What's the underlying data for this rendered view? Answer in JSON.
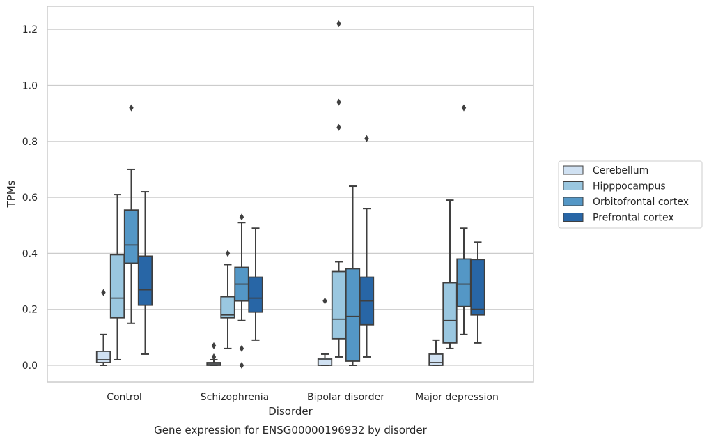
{
  "chart_data": {
    "type": "box",
    "xlabel": "Disorder",
    "ylabel": "TPMs",
    "caption": "Gene expression for ENSG00000196932 by disorder",
    "ylim": [
      -0.06,
      1.28
    ],
    "yticks": [
      "0.0",
      "0.2",
      "0.4",
      "0.6",
      "0.8",
      "1.0",
      "1.2"
    ],
    "grid": "horizontal",
    "legend_position": "right",
    "categories": [
      "Control",
      "Schizophrenia",
      "Bipolar disorder",
      "Major depression"
    ],
    "series": [
      {
        "name": "Cerebellum",
        "color": "#d0e1f2",
        "boxes": [
          {
            "whisker_low": 0.0,
            "q1": 0.01,
            "median": 0.02,
            "q3": 0.05,
            "whisker_high": 0.11,
            "outliers": [
              0.26
            ]
          },
          {
            "whisker_low": 0.0,
            "q1": 0.0,
            "median": 0.005,
            "q3": 0.01,
            "whisker_high": 0.02,
            "outliers": [
              0.03,
              0.07
            ]
          },
          {
            "whisker_low": 0.0,
            "q1": 0.0,
            "median": 0.02,
            "q3": 0.025,
            "whisker_high": 0.04,
            "outliers": [
              0.23
            ]
          },
          {
            "whisker_low": 0.0,
            "q1": 0.0,
            "median": 0.01,
            "q3": 0.04,
            "whisker_high": 0.09,
            "outliers": []
          }
        ]
      },
      {
        "name": "Hipppocampus",
        "color": "#9ac7e0",
        "boxes": [
          {
            "whisker_low": 0.02,
            "q1": 0.17,
            "median": 0.24,
            "q3": 0.395,
            "whisker_high": 0.61,
            "outliers": []
          },
          {
            "whisker_low": 0.06,
            "q1": 0.17,
            "median": 0.18,
            "q3": 0.245,
            "whisker_high": 0.36,
            "outliers": [
              0.4
            ]
          },
          {
            "whisker_low": 0.03,
            "q1": 0.095,
            "median": 0.165,
            "q3": 0.335,
            "whisker_high": 0.37,
            "outliers": [
              0.85,
              0.94,
              1.22
            ]
          },
          {
            "whisker_low": 0.06,
            "q1": 0.08,
            "median": 0.16,
            "q3": 0.295,
            "whisker_high": 0.59,
            "outliers": []
          }
        ]
      },
      {
        "name": "Orbitofrontal cortex",
        "color": "#5497c6",
        "boxes": [
          {
            "whisker_low": 0.15,
            "q1": 0.365,
            "median": 0.43,
            "q3": 0.555,
            "whisker_high": 0.7,
            "outliers": [
              0.92
            ]
          },
          {
            "whisker_low": 0.16,
            "q1": 0.23,
            "median": 0.29,
            "q3": 0.35,
            "whisker_high": 0.51,
            "outliers": [
              0.0,
              0.06,
              0.53
            ]
          },
          {
            "whisker_low": 0.0,
            "q1": 0.015,
            "median": 0.175,
            "q3": 0.345,
            "whisker_high": 0.64,
            "outliers": []
          },
          {
            "whisker_low": 0.11,
            "q1": 0.21,
            "median": 0.29,
            "q3": 0.38,
            "whisker_high": 0.49,
            "outliers": [
              0.92
            ]
          }
        ]
      },
      {
        "name": "Prefrontal cortex",
        "color": "#2866a6",
        "boxes": [
          {
            "whisker_low": 0.04,
            "q1": 0.215,
            "median": 0.27,
            "q3": 0.39,
            "whisker_high": 0.62,
            "outliers": []
          },
          {
            "whisker_low": 0.09,
            "q1": 0.19,
            "median": 0.24,
            "q3": 0.315,
            "whisker_high": 0.49,
            "outliers": []
          },
          {
            "whisker_low": 0.03,
            "q1": 0.145,
            "median": 0.23,
            "q3": 0.315,
            "whisker_high": 0.56,
            "outliers": [
              0.81
            ]
          },
          {
            "whisker_low": 0.08,
            "q1": 0.18,
            "median": 0.2,
            "q3": 0.378,
            "whisker_high": 0.44,
            "outliers": []
          }
        ]
      }
    ]
  }
}
